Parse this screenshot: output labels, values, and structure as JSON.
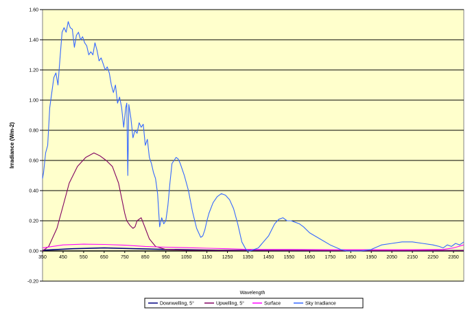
{
  "chart_data": {
    "type": "line",
    "title": "",
    "xlabel": "Wavelength",
    "ylabel": "Irradiance (Wm-2)",
    "xlim": [
      350,
      2400
    ],
    "ylim": [
      -0.2,
      1.6
    ],
    "x_ticks": [
      350,
      450,
      550,
      650,
      750,
      850,
      950,
      1050,
      1150,
      1250,
      1350,
      1450,
      1550,
      1650,
      1750,
      1850,
      1950,
      2050,
      2150,
      2250,
      2350
    ],
    "y_ticks": [
      -0.2,
      0.0,
      0.2,
      0.4,
      0.6,
      0.8,
      1.0,
      1.2,
      1.4,
      1.6
    ],
    "y_tick_labels": [
      "-0.20",
      "0.00",
      "0.20",
      "0.40",
      "0.60",
      "0.80",
      "1.00",
      "1.20",
      "1.40",
      "1.60"
    ],
    "grid": "horizontal",
    "legend_position": "bottom",
    "plot_background": "#FFFFCC",
    "series": [
      {
        "name": "Downwelling, 5°",
        "color": "#000080",
        "x": [
          350,
          500,
          650,
          800,
          950,
          1200,
          1500,
          1800,
          2100,
          2400
        ],
        "y": [
          0.005,
          0.015,
          0.02,
          0.015,
          0.01,
          0.005,
          0.003,
          0.002,
          0.002,
          0.003
        ]
      },
      {
        "name": "Upwelling, 5°",
        "color": "#800060",
        "x": [
          350,
          380,
          420,
          450,
          480,
          520,
          560,
          600,
          630,
          660,
          690,
          720,
          750,
          760,
          775,
          790,
          800,
          810,
          830,
          850,
          870,
          900,
          950,
          1050,
          1200,
          1500,
          1800,
          2100,
          2400
        ],
        "y": [
          0.0,
          0.03,
          0.15,
          0.3,
          0.45,
          0.56,
          0.62,
          0.65,
          0.63,
          0.6,
          0.56,
          0.45,
          0.25,
          0.2,
          0.17,
          0.15,
          0.16,
          0.2,
          0.22,
          0.15,
          0.08,
          0.03,
          0.01,
          0.005,
          0.004,
          0.003,
          0.002,
          0.002,
          0.003
        ]
      },
      {
        "name": "Surface",
        "color": "#FF00FF",
        "x": [
          350,
          450,
          550,
          650,
          750,
          850,
          950,
          1050,
          1150,
          1250,
          1350,
          1550,
          1750,
          1950,
          2150,
          2300,
          2350,
          2400
        ],
        "y": [
          0.02,
          0.04,
          0.045,
          0.043,
          0.038,
          0.03,
          0.025,
          0.022,
          0.018,
          0.015,
          0.01,
          0.01,
          0.008,
          0.008,
          0.008,
          0.01,
          0.02,
          0.04
        ]
      },
      {
        "name": "Sky Irradiance",
        "color": "#3366FF",
        "x": [
          350,
          355,
          365,
          375,
          385,
          395,
          405,
          415,
          425,
          435,
          445,
          455,
          465,
          475,
          485,
          495,
          505,
          515,
          525,
          535,
          545,
          555,
          565,
          575,
          585,
          595,
          605,
          615,
          625,
          635,
          645,
          655,
          665,
          675,
          685,
          695,
          705,
          715,
          725,
          735,
          745,
          755,
          760,
          765,
          770,
          780,
          790,
          800,
          810,
          820,
          830,
          840,
          850,
          860,
          870,
          880,
          890,
          900,
          910,
          920,
          930,
          940,
          950,
          960,
          970,
          980,
          990,
          1000,
          1010,
          1020,
          1040,
          1060,
          1080,
          1100,
          1120,
          1130,
          1140,
          1150,
          1160,
          1180,
          1200,
          1220,
          1240,
          1260,
          1280,
          1300,
          1320,
          1340,
          1350,
          1360,
          1380,
          1400,
          1450,
          1480,
          1500,
          1520,
          1540,
          1560,
          1580,
          1600,
          1620,
          1650,
          1700,
          1750,
          1800,
          1830,
          1860,
          1900,
          1950,
          2000,
          2050,
          2100,
          2150,
          2200,
          2250,
          2280,
          2300,
          2320,
          2340,
          2360,
          2380,
          2400
        ],
        "y": [
          0.48,
          0.52,
          0.65,
          0.7,
          0.95,
          1.05,
          1.15,
          1.18,
          1.1,
          1.28,
          1.45,
          1.48,
          1.45,
          1.52,
          1.48,
          1.47,
          1.35,
          1.43,
          1.45,
          1.4,
          1.42,
          1.38,
          1.36,
          1.3,
          1.32,
          1.3,
          1.38,
          1.33,
          1.26,
          1.28,
          1.24,
          1.2,
          1.22,
          1.18,
          1.1,
          1.05,
          1.1,
          0.98,
          1.02,
          0.95,
          0.82,
          0.95,
          0.98,
          0.5,
          0.97,
          0.88,
          0.75,
          0.8,
          0.78,
          0.85,
          0.82,
          0.84,
          0.7,
          0.74,
          0.62,
          0.58,
          0.52,
          0.48,
          0.38,
          0.16,
          0.22,
          0.18,
          0.2,
          0.3,
          0.45,
          0.58,
          0.6,
          0.62,
          0.61,
          0.58,
          0.5,
          0.4,
          0.26,
          0.15,
          0.09,
          0.1,
          0.14,
          0.2,
          0.25,
          0.32,
          0.36,
          0.38,
          0.37,
          0.34,
          0.28,
          0.18,
          0.06,
          0.01,
          0.0,
          0.0,
          0.01,
          0.02,
          0.1,
          0.18,
          0.21,
          0.22,
          0.2,
          0.2,
          0.19,
          0.18,
          0.16,
          0.12,
          0.08,
          0.04,
          0.01,
          0.0,
          0.0,
          0.0,
          0.01,
          0.04,
          0.05,
          0.06,
          0.06,
          0.05,
          0.04,
          0.03,
          0.02,
          0.04,
          0.03,
          0.05,
          0.04,
          0.06
        ]
      }
    ]
  }
}
